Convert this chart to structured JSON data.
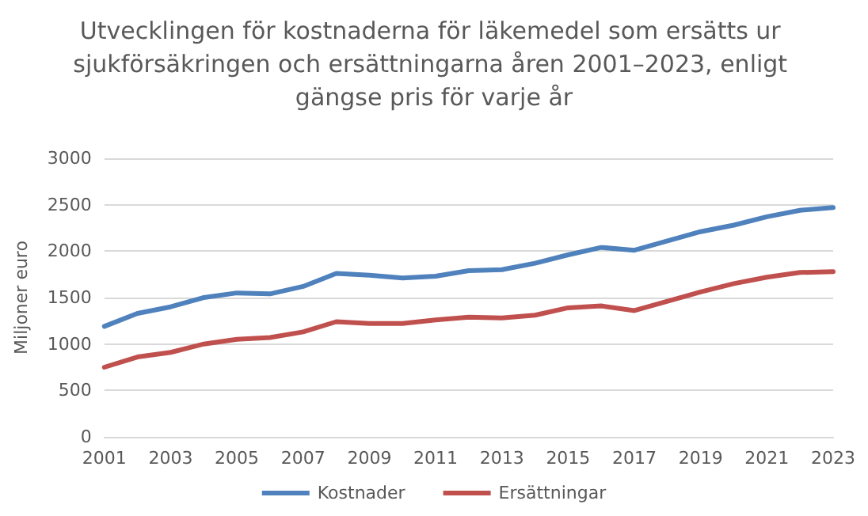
{
  "chart_data": {
    "type": "line",
    "title": "Utvecklingen för kostnaderna för läkemedel som ersätts ur sjukförsäkringen och ersättningarna åren 2001–2023, enligt gängse pris för varje år",
    "ylabel": "Miljoner euro",
    "categories": [
      "2001",
      null,
      "2003",
      null,
      "2005",
      null,
      "2007",
      null,
      "2009",
      null,
      "2011",
      null,
      "2013",
      null,
      "2015",
      null,
      "2017",
      null,
      "2019",
      null,
      "2021",
      null,
      "2023"
    ],
    "series": [
      {
        "name": "Kostnader",
        "color": "#4f81bd",
        "values": [
          1190,
          1330,
          1400,
          1500,
          1550,
          1540,
          1620,
          1760,
          1740,
          1710,
          1730,
          1790,
          1800,
          1870,
          1960,
          2040,
          2010,
          2110,
          2210,
          2280,
          2370,
          2440,
          2470
        ]
      },
      {
        "name": "Ersättningar",
        "color": "#c0504d",
        "values": [
          750,
          860,
          910,
          1000,
          1050,
          1070,
          1130,
          1240,
          1220,
          1220,
          1260,
          1290,
          1280,
          1310,
          1390,
          1410,
          1360,
          1460,
          1560,
          1650,
          1720,
          1770,
          1780
        ]
      }
    ],
    "ylim": [
      0,
      3000
    ],
    "yticks": [
      0,
      500,
      1000,
      1500,
      2000,
      2500,
      3000
    ],
    "grid": "y",
    "legend": "bottom",
    "marker": "none",
    "line_style": "solid"
  }
}
